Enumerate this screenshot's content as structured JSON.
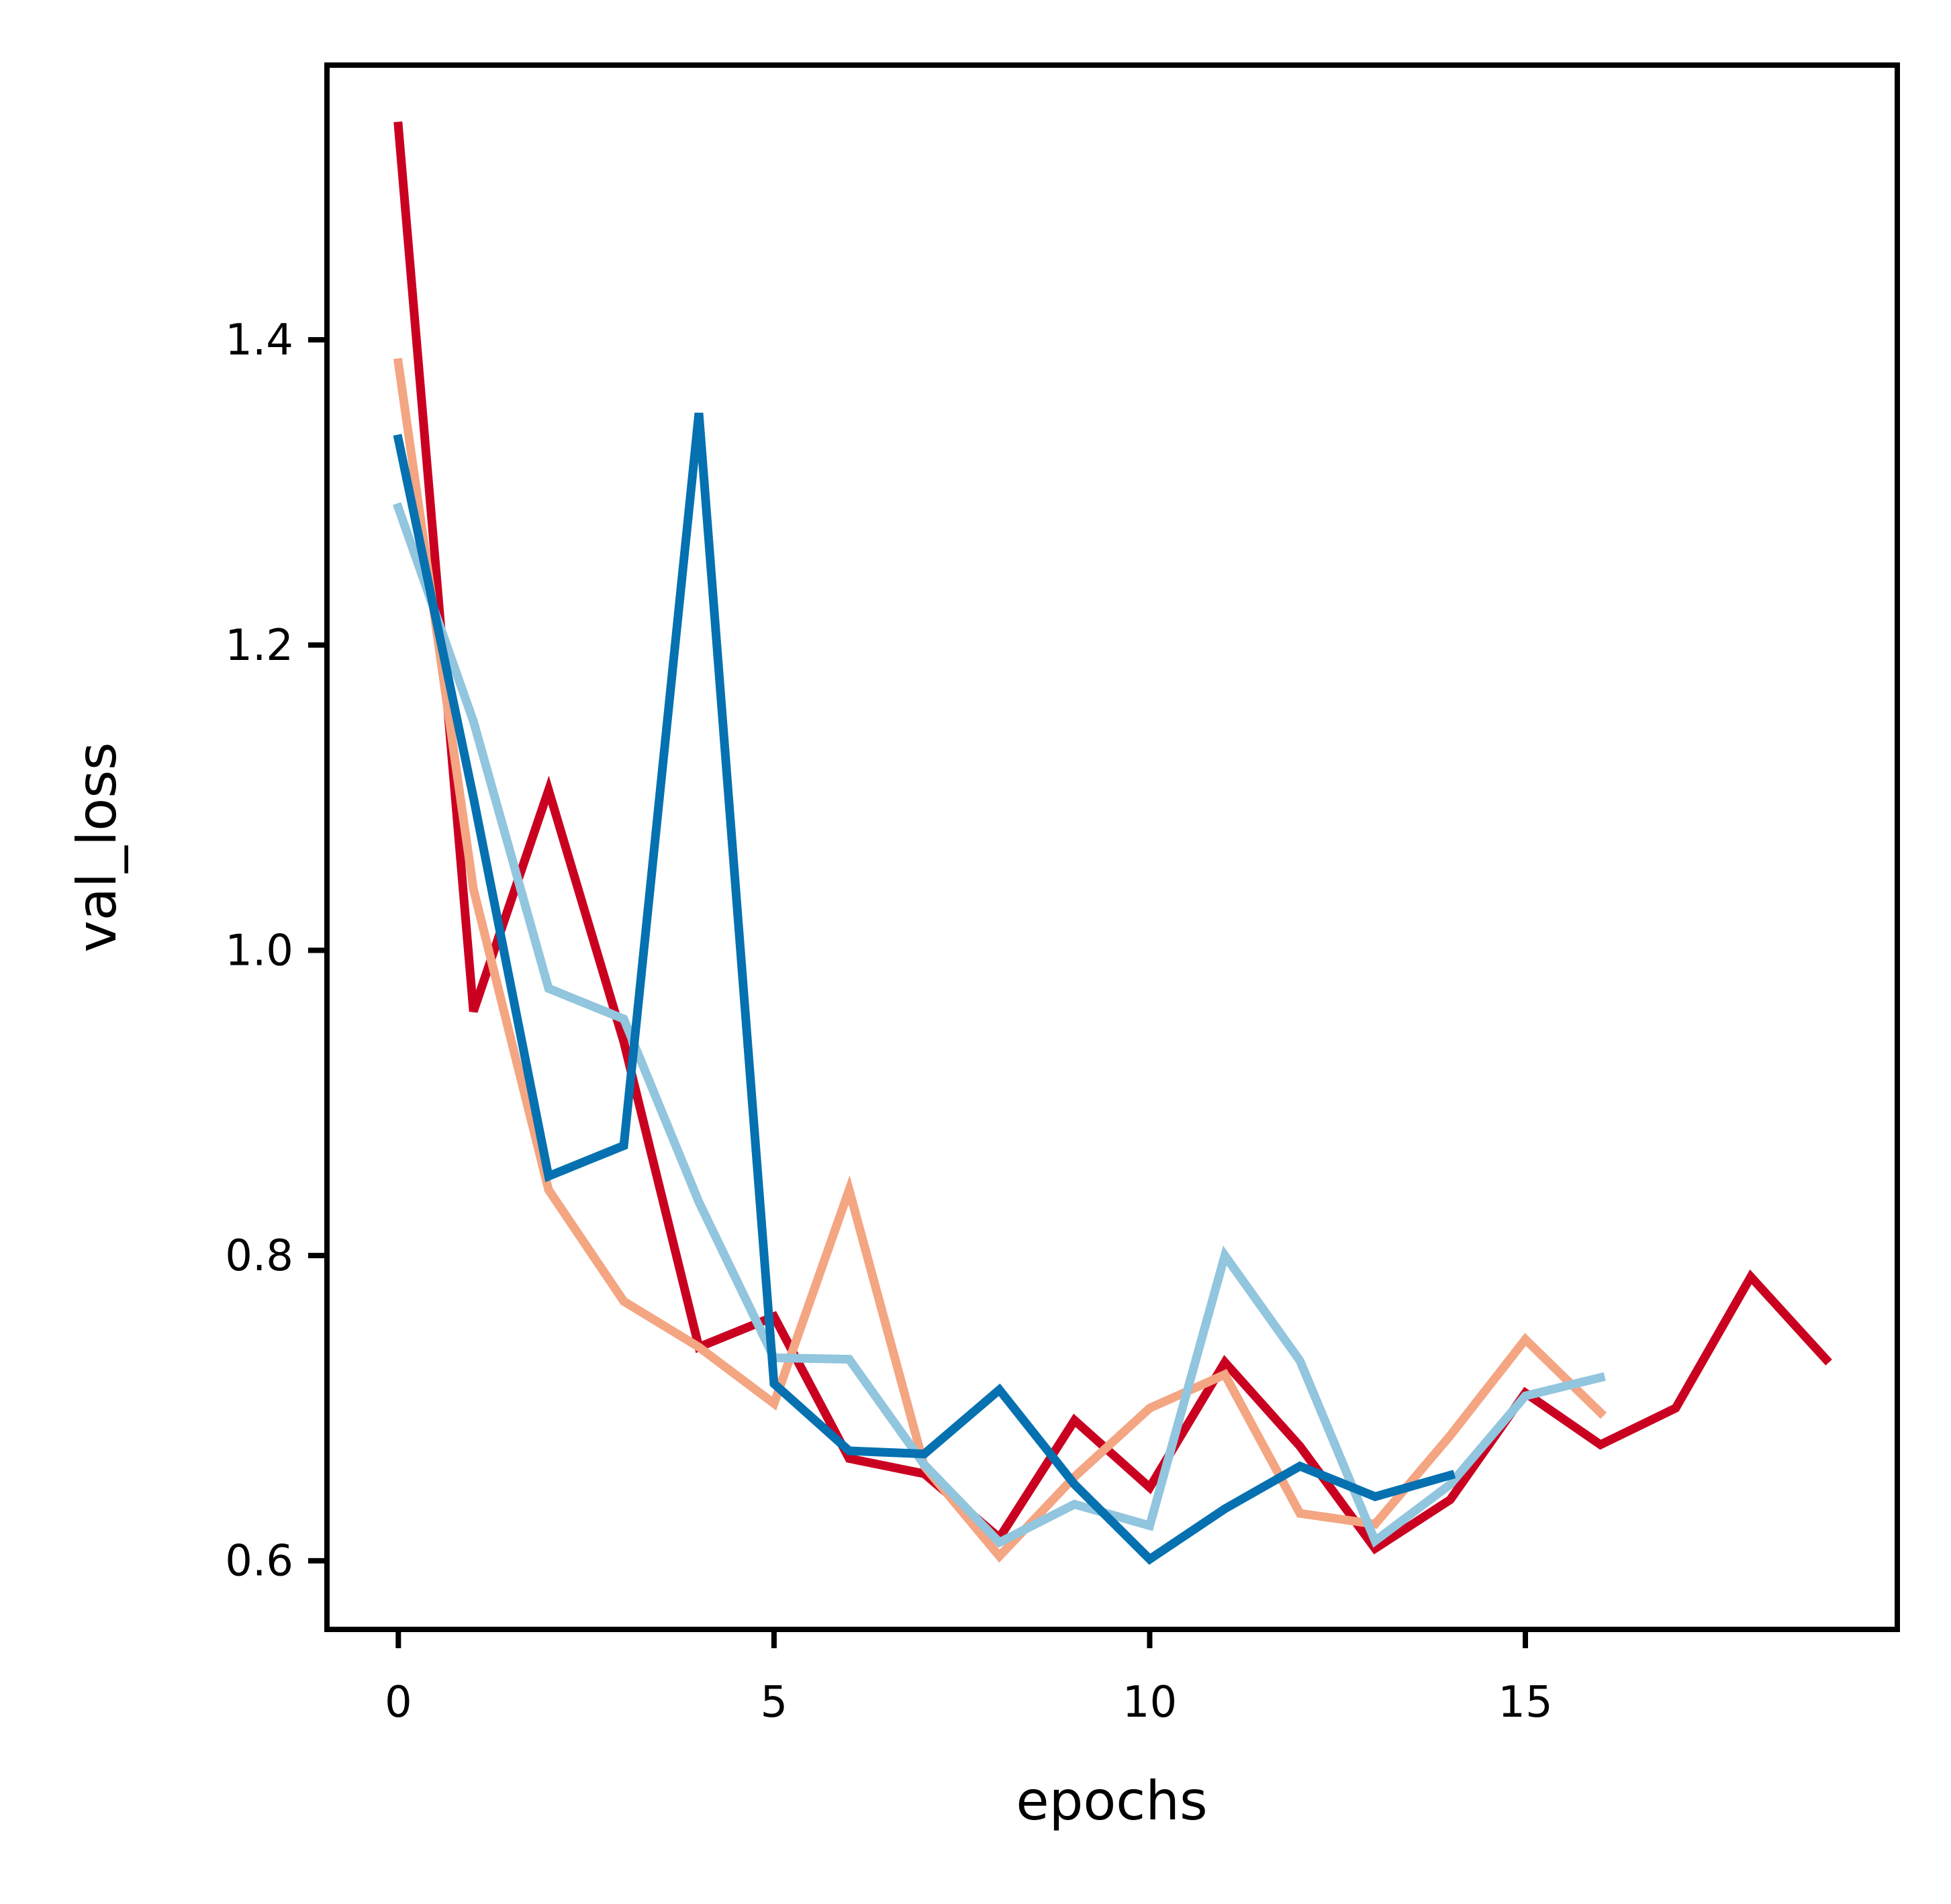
{
  "chart_data": {
    "type": "line",
    "title": "",
    "xlabel": "epochs",
    "ylabel": "val_loss",
    "xlim": [
      -0.95,
      19.95
    ],
    "ylim": [
      0.555,
      1.58
    ],
    "xticks": [
      0,
      5,
      10,
      15
    ],
    "xtick_labels": [
      "0",
      "5",
      "10",
      "15"
    ],
    "yticks": [
      0.6,
      0.8,
      1.0,
      1.2,
      1.4
    ],
    "ytick_labels": [
      "0.6",
      "0.8",
      "1.0",
      "1.2",
      "1.4"
    ],
    "grid": false,
    "legend": "none",
    "series": [
      {
        "color": "#ca0020",
        "x": [
          0,
          1,
          2,
          3,
          4,
          5,
          6,
          7,
          8,
          9,
          10,
          11,
          12,
          13,
          14,
          15,
          16,
          17,
          18,
          19
        ],
        "values": [
          1.54,
          0.96,
          1.105,
          0.94,
          0.74,
          0.76,
          0.667,
          0.657,
          0.615,
          0.692,
          0.648,
          0.73,
          0.675,
          0.608,
          0.64,
          0.71,
          0.676,
          0.7,
          0.786,
          0.732
        ]
      },
      {
        "color": "#f4a582",
        "x": [
          0,
          1,
          2,
          3,
          4,
          5,
          6,
          7,
          8,
          9,
          10,
          11,
          12,
          13,
          14,
          15,
          16
        ],
        "values": [
          1.385,
          1.04,
          0.843,
          0.77,
          0.74,
          0.703,
          0.843,
          0.662,
          0.603,
          0.655,
          0.7,
          0.722,
          0.631,
          0.624,
          0.682,
          0.745,
          0.697
        ]
      },
      {
        "color": "#92c5de",
        "x": [
          0,
          1,
          2,
          3,
          4,
          5,
          6,
          7,
          8,
          9,
          10,
          11,
          12,
          13,
          14,
          15,
          16
        ],
        "values": [
          1.29,
          1.15,
          0.975,
          0.955,
          0.835,
          0.733,
          0.732,
          0.663,
          0.612,
          0.637,
          0.623,
          0.8,
          0.731,
          0.613,
          0.65,
          0.708,
          0.72
        ]
      },
      {
        "color": "#0571b0",
        "x": [
          0,
          1,
          2,
          3,
          4,
          5,
          6,
          7,
          8,
          9,
          10,
          11,
          12,
          13,
          14
        ],
        "values": [
          1.335,
          1.1,
          0.852,
          0.872,
          1.352,
          0.716,
          0.672,
          0.67,
          0.712,
          0.65,
          0.601,
          0.634,
          0.662,
          0.642,
          0.656
        ]
      }
    ]
  }
}
